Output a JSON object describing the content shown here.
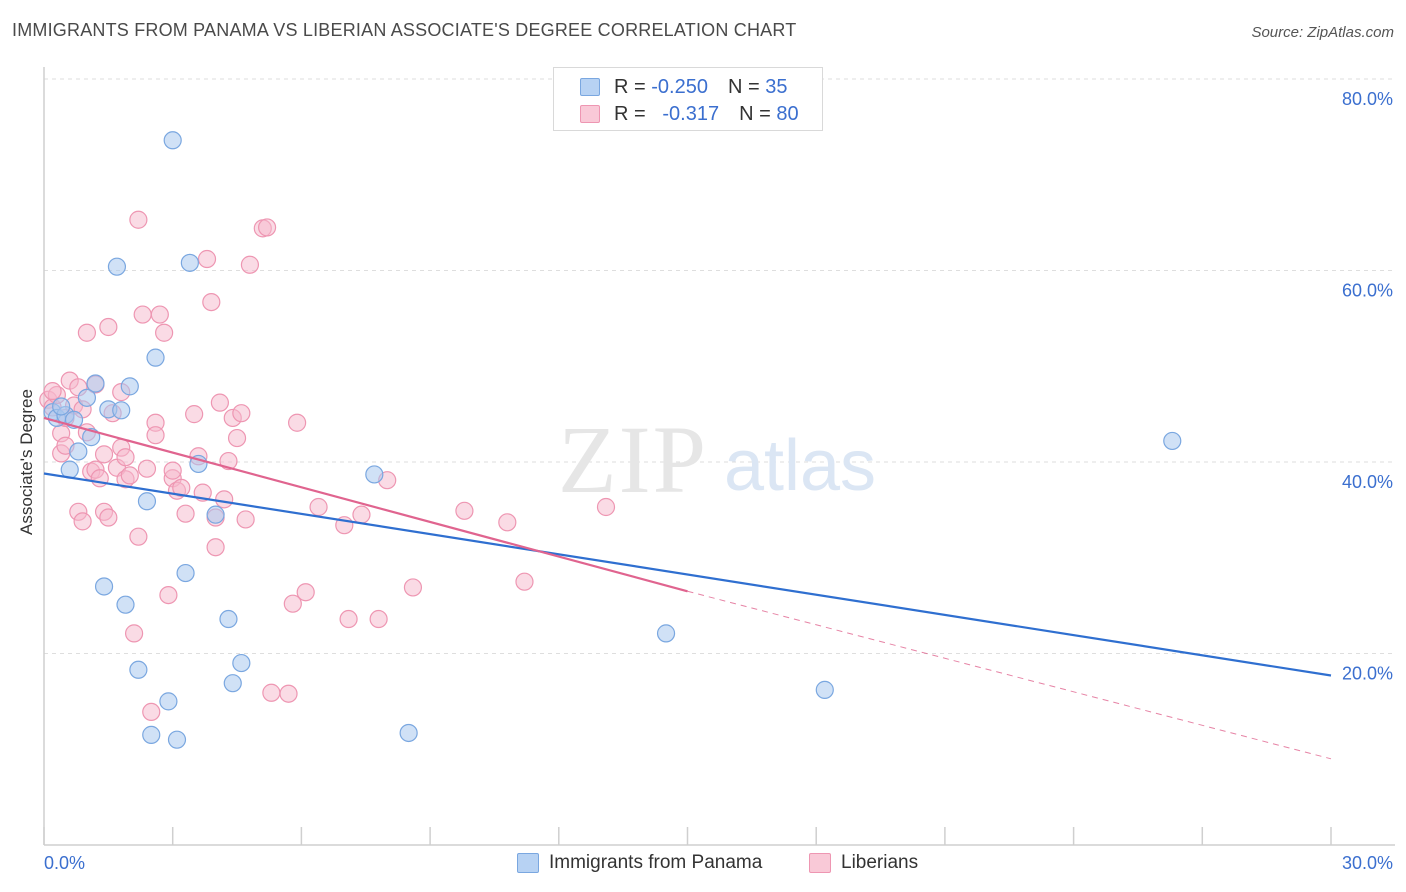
{
  "header": {
    "title": "IMMIGRANTS FROM PANAMA VS LIBERIAN ASSOCIATE'S DEGREE CORRELATION CHART",
    "source": "Source: ZipAtlas.com"
  },
  "watermark": {
    "zip": "ZIP",
    "atlas": "atlas"
  },
  "legend_top": {
    "rows": [
      {
        "r_label": "R =",
        "r_value": "-0.250",
        "n_label": "N =",
        "n_value": "35"
      },
      {
        "r_label": "R =",
        "r_value": "-0.317",
        "n_label": "N =",
        "n_value": "80"
      }
    ]
  },
  "legend_bottom": {
    "items": [
      {
        "label": "Immigrants from Panama"
      },
      {
        "label": "Liberians"
      }
    ]
  },
  "colors": {
    "blue_fill": "#a9c8ef",
    "blue_stroke": "#7aa7e0",
    "blue_line": "#2f6fd0",
    "pink_fill": "#f6b8cb",
    "pink_stroke": "#ee96b2",
    "pink_line": "#e0648f",
    "tick_text": "#3b6fcf",
    "grid": "#dedede"
  },
  "chart_data": {
    "type": "scatter",
    "title": "IMMIGRANTS FROM PANAMA VS LIBERIAN ASSOCIATE'S DEGREE CORRELATION CHART",
    "xlabel": "",
    "ylabel": "Associate's Degree",
    "xlim": [
      0,
      30
    ],
    "ylim": [
      0,
      80
    ],
    "x_tick_labels": [
      "0.0%",
      "30.0%"
    ],
    "y_ticks": [
      20,
      40,
      60,
      80
    ],
    "y_tick_labels": [
      "20.0%",
      "40.0%",
      "60.0%",
      "80.0%"
    ],
    "grid": true,
    "legend_position": "top-center",
    "series": [
      {
        "name": "Immigrants from Panama",
        "color": "#a9c8ef",
        "R": -0.25,
        "N": 35,
        "trend": {
          "x": [
            0,
            30
          ],
          "y": [
            38.8,
            17.7
          ]
        },
        "points": [
          [
            0.2,
            45.2
          ],
          [
            0.3,
            44.6
          ],
          [
            0.5,
            44.9
          ],
          [
            0.6,
            39.2
          ],
          [
            0.8,
            41.1
          ],
          [
            1.0,
            46.7
          ],
          [
            1.1,
            42.6
          ],
          [
            1.2,
            48.2
          ],
          [
            1.4,
            27.0
          ],
          [
            1.5,
            45.5
          ],
          [
            1.7,
            60.4
          ],
          [
            1.8,
            45.4
          ],
          [
            1.9,
            25.1
          ],
          [
            2.0,
            47.9
          ],
          [
            2.2,
            18.3
          ],
          [
            2.4,
            35.9
          ],
          [
            2.5,
            11.5
          ],
          [
            2.6,
            50.9
          ],
          [
            2.9,
            15.0
          ],
          [
            3.0,
            73.6
          ],
          [
            3.1,
            11.0
          ],
          [
            3.3,
            28.4
          ],
          [
            3.4,
            60.8
          ],
          [
            3.6,
            39.8
          ],
          [
            4.0,
            34.5
          ],
          [
            4.3,
            23.6
          ],
          [
            4.4,
            16.9
          ],
          [
            4.6,
            19.0
          ],
          [
            7.7,
            38.7
          ],
          [
            8.5,
            11.7
          ],
          [
            14.5,
            22.1
          ],
          [
            18.2,
            16.2
          ],
          [
            26.3,
            42.2
          ],
          [
            0.4,
            45.8
          ],
          [
            0.7,
            44.4
          ]
        ]
      },
      {
        "name": "Liberians",
        "color": "#f6b8cb",
        "R": -0.317,
        "N": 80,
        "trend": {
          "x": [
            0,
            15
          ],
          "y": [
            44.6,
            26.5
          ],
          "dashed_to": {
            "x": 30,
            "y": 9.0
          }
        },
        "points": [
          [
            0.1,
            46.5
          ],
          [
            0.2,
            45.7
          ],
          [
            0.3,
            47.0
          ],
          [
            0.4,
            40.9
          ],
          [
            0.4,
            43.0
          ],
          [
            0.5,
            44.6
          ],
          [
            0.6,
            48.5
          ],
          [
            0.7,
            45.9
          ],
          [
            0.8,
            47.8
          ],
          [
            0.8,
            34.8
          ],
          [
            0.9,
            33.8
          ],
          [
            0.9,
            45.5
          ],
          [
            1.0,
            53.5
          ],
          [
            1.0,
            43.1
          ],
          [
            1.1,
            39.0
          ],
          [
            1.2,
            39.2
          ],
          [
            1.3,
            38.3
          ],
          [
            1.4,
            40.8
          ],
          [
            1.4,
            34.8
          ],
          [
            1.5,
            34.2
          ],
          [
            1.5,
            54.1
          ],
          [
            1.6,
            45.1
          ],
          [
            1.7,
            39.4
          ],
          [
            1.8,
            47.3
          ],
          [
            1.8,
            41.5
          ],
          [
            1.9,
            40.5
          ],
          [
            1.9,
            38.2
          ],
          [
            2.1,
            22.1
          ],
          [
            2.2,
            65.3
          ],
          [
            2.2,
            32.2
          ],
          [
            2.3,
            55.4
          ],
          [
            2.4,
            39.3
          ],
          [
            2.5,
            13.9
          ],
          [
            2.6,
            44.1
          ],
          [
            2.7,
            55.4
          ],
          [
            2.8,
            53.5
          ],
          [
            2.9,
            26.1
          ],
          [
            3.0,
            38.3
          ],
          [
            3.0,
            39.1
          ],
          [
            3.1,
            37.0
          ],
          [
            3.2,
            37.3
          ],
          [
            3.3,
            34.6
          ],
          [
            3.5,
            45.0
          ],
          [
            3.6,
            40.6
          ],
          [
            3.8,
            61.2
          ],
          [
            3.9,
            56.7
          ],
          [
            4.0,
            31.1
          ],
          [
            4.0,
            34.2
          ],
          [
            4.1,
            46.2
          ],
          [
            4.2,
            36.1
          ],
          [
            4.3,
            40.1
          ],
          [
            4.4,
            44.6
          ],
          [
            4.6,
            45.1
          ],
          [
            4.7,
            34.0
          ],
          [
            4.8,
            60.6
          ],
          [
            5.1,
            64.4
          ],
          [
            5.2,
            64.5
          ],
          [
            5.3,
            15.9
          ],
          [
            5.7,
            15.8
          ],
          [
            5.8,
            25.2
          ],
          [
            5.9,
            44.1
          ],
          [
            6.4,
            35.3
          ],
          [
            7.0,
            33.4
          ],
          [
            7.1,
            23.6
          ],
          [
            7.4,
            34.5
          ],
          [
            7.8,
            23.6
          ],
          [
            8.0,
            38.1
          ],
          [
            8.6,
            26.9
          ],
          [
            9.8,
            34.9
          ],
          [
            10.8,
            33.7
          ],
          [
            11.2,
            27.5
          ],
          [
            13.1,
            35.3
          ],
          [
            0.2,
            47.4
          ],
          [
            0.5,
            41.7
          ],
          [
            1.2,
            48.1
          ],
          [
            2.0,
            38.6
          ],
          [
            3.7,
            36.8
          ],
          [
            4.5,
            42.5
          ],
          [
            6.1,
            26.4
          ],
          [
            2.6,
            42.8
          ]
        ]
      }
    ]
  }
}
